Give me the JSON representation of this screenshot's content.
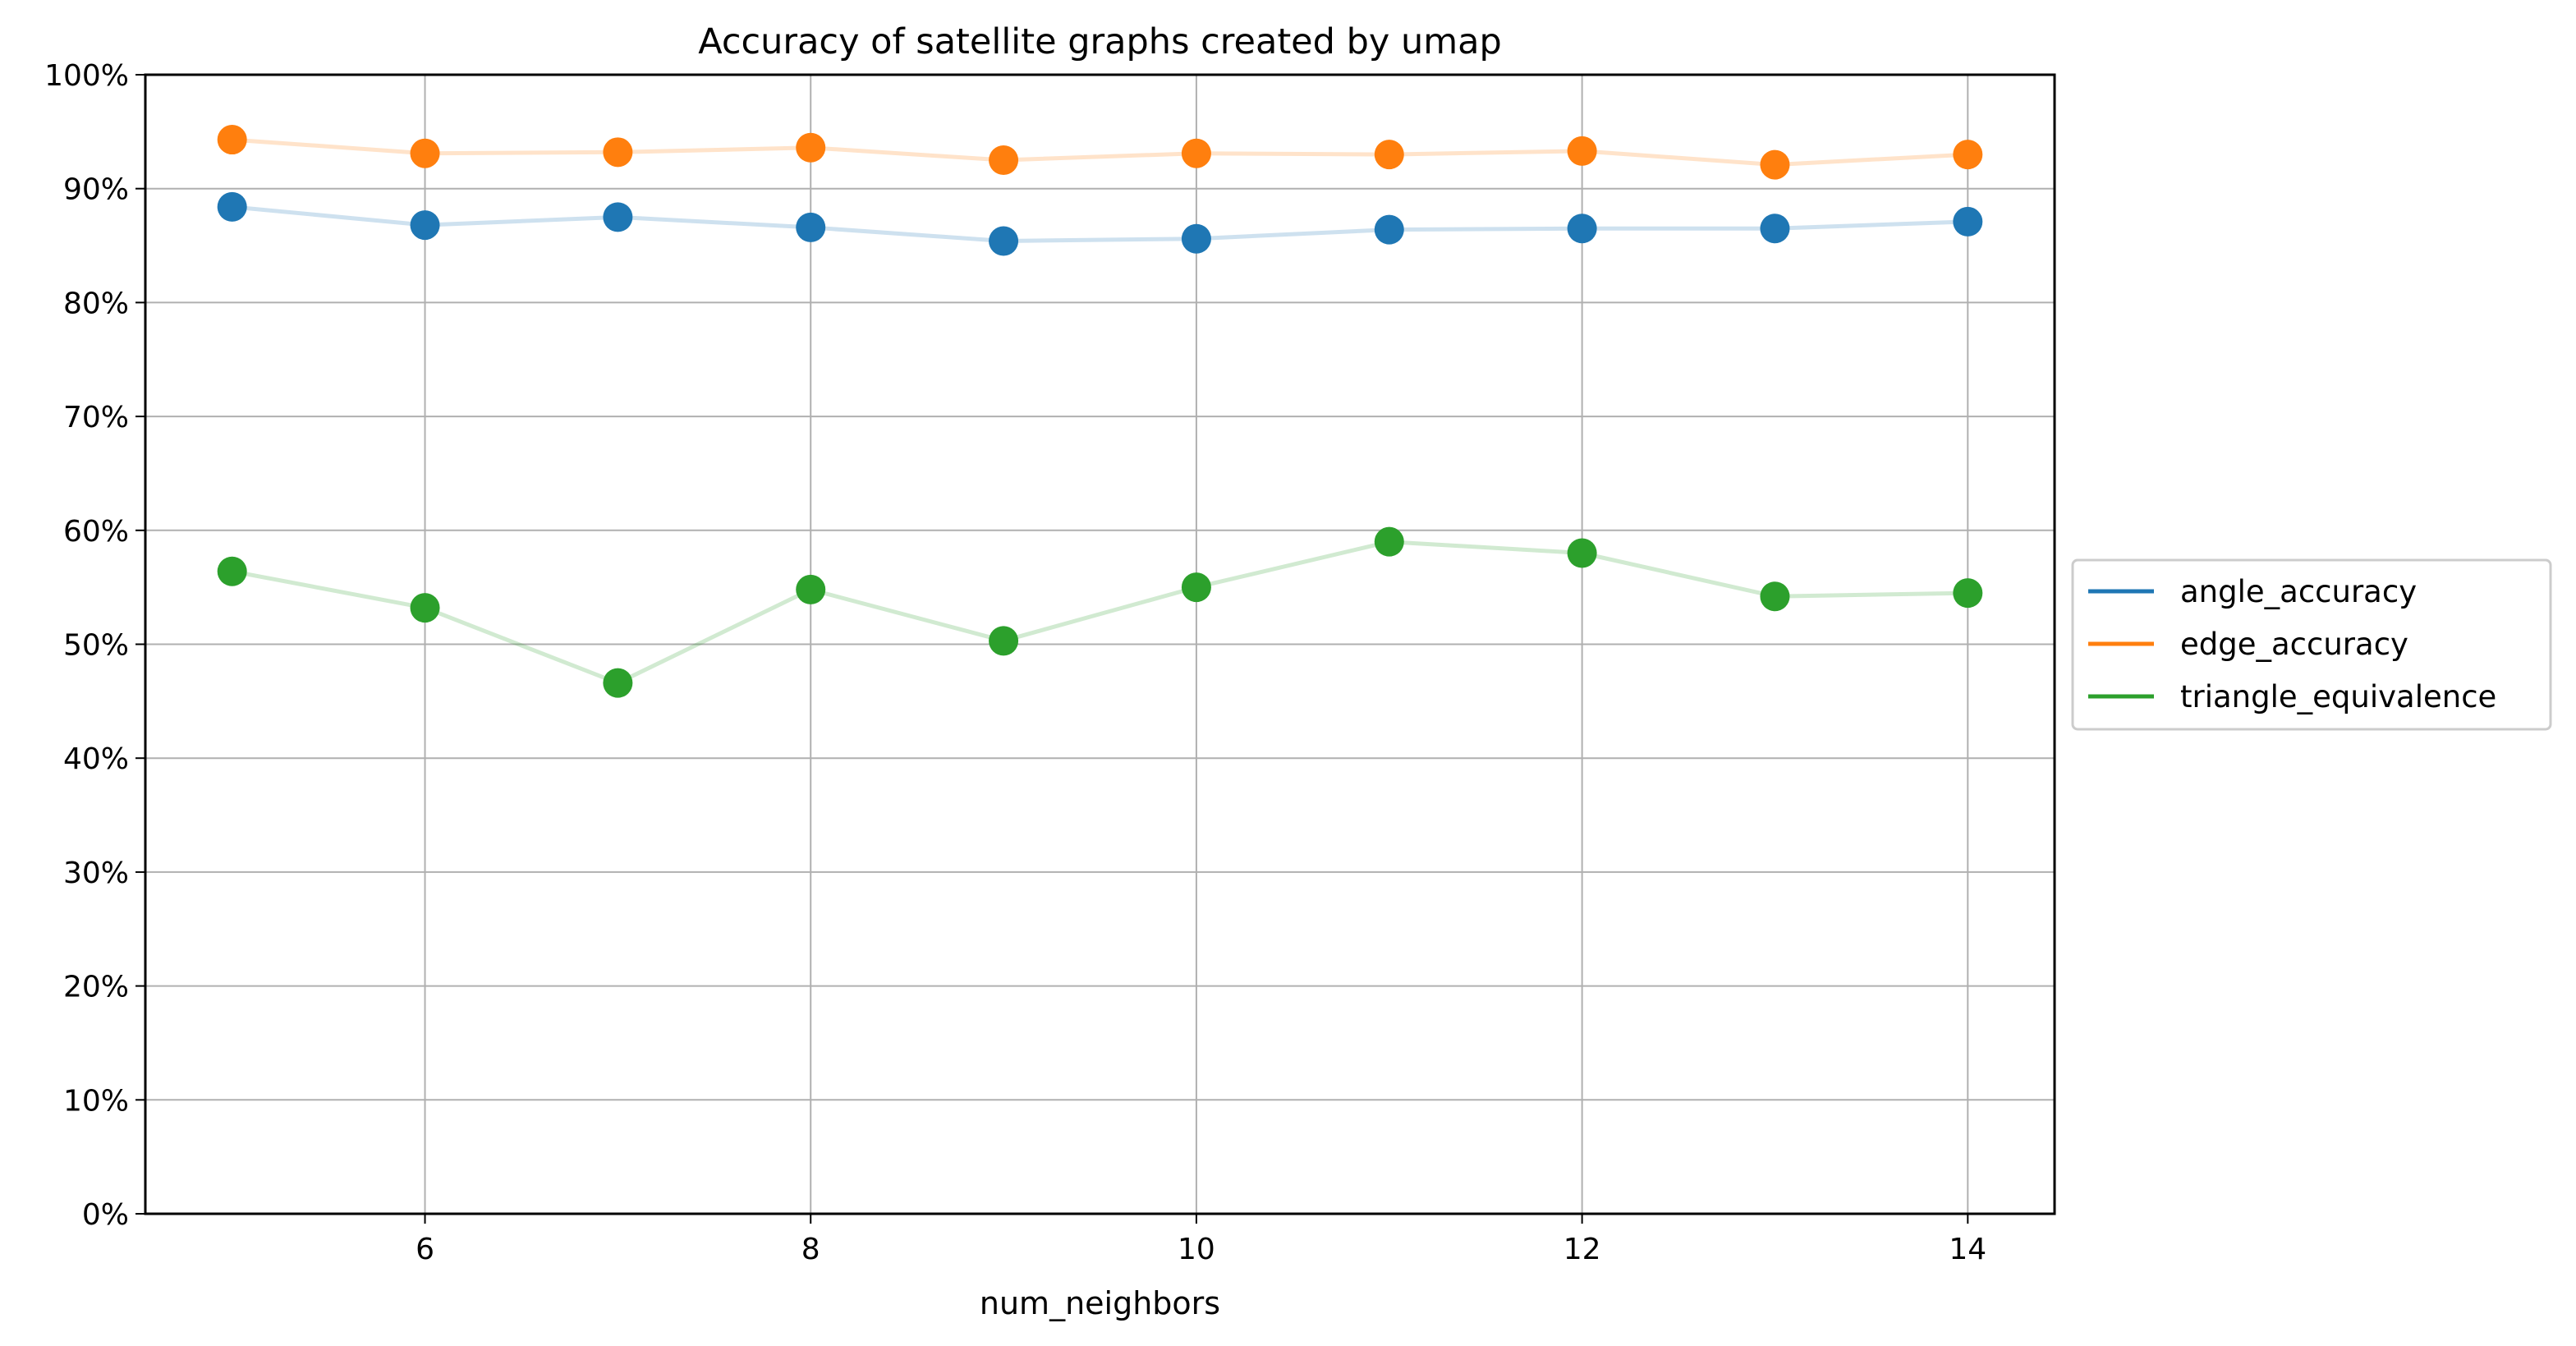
{
  "chart_data": {
    "type": "line",
    "title": "Accuracy of satellite graphs created by umap",
    "xlabel": "num_neighbors",
    "ylabel": "",
    "x": [
      5,
      6,
      7,
      8,
      9,
      10,
      11,
      12,
      13,
      14
    ],
    "xlim": [
      4.55,
      14.45
    ],
    "ylim": [
      0,
      1
    ],
    "x_ticks": [
      6,
      8,
      10,
      12,
      14
    ],
    "y_ticks": [
      0,
      0.1,
      0.2,
      0.3,
      0.4,
      0.5,
      0.6,
      0.7,
      0.8,
      0.9,
      1.0
    ],
    "x_tick_labels": [
      "6",
      "8",
      "10",
      "12",
      "14"
    ],
    "y_tick_labels": [
      "0%",
      "10%",
      "20%",
      "30%",
      "40%",
      "50%",
      "60%",
      "70%",
      "80%",
      "90%",
      "100%"
    ],
    "grid": true,
    "legend_position": "center-right outside",
    "series": [
      {
        "name": "angle_accuracy",
        "color": "#1f77b4",
        "values": [
          0.884,
          0.868,
          0.875,
          0.866,
          0.854,
          0.856,
          0.864,
          0.865,
          0.865,
          0.871
        ]
      },
      {
        "name": "edge_accuracy",
        "color": "#ff7f0e",
        "values": [
          0.943,
          0.931,
          0.932,
          0.936,
          0.925,
          0.931,
          0.93,
          0.933,
          0.921,
          0.93
        ]
      },
      {
        "name": "triangle_equivalence",
        "color": "#2ca02c",
        "values": [
          0.564,
          0.532,
          0.466,
          0.548,
          0.503,
          0.55,
          0.59,
          0.58,
          0.542,
          0.545
        ]
      }
    ]
  }
}
